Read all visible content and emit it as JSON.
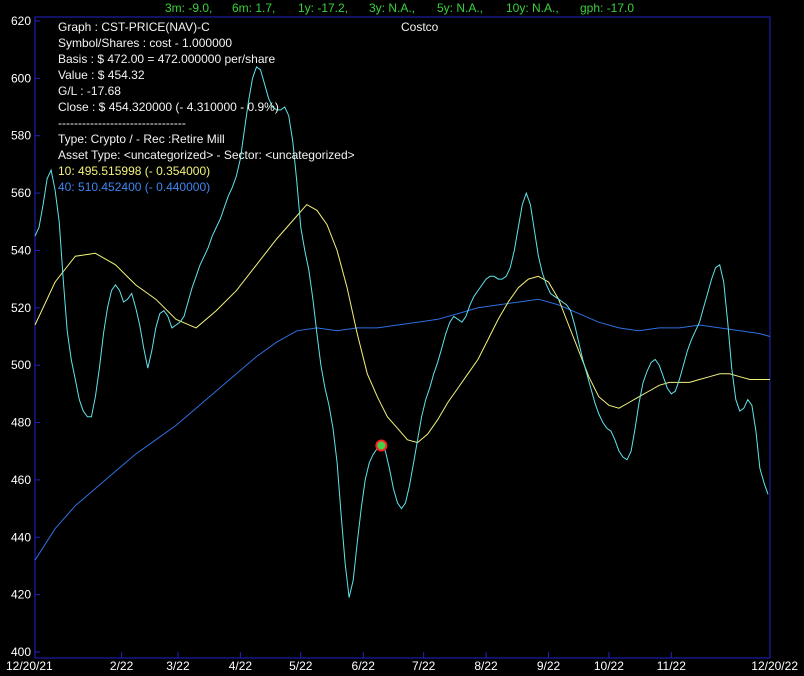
{
  "stats": {
    "m3": "3m: -9.0,",
    "m6": "6m: 1.7,",
    "y1": "1y: -17.2,",
    "y3": "3y: N.A.,",
    "y5": "5y: N.A.,",
    "y10": "10y: N.A.,",
    "gph": "gph: -17.0"
  },
  "info": {
    "graph": "Graph   : CST-PRICE(NAV)-C",
    "company": "Costco",
    "symbol": "Symbol/Shares : cost - 1.000000",
    "basis": "Basis   : $ 472.00 = 472.000000 per/share",
    "value": "Value   : $ 454.32",
    "gl": "G/L     : -17.68",
    "close": "Close   : $ 454.320000 (- 4.310000 - 0.9%)",
    "separator": "--------------------------------",
    "type": "Type: Crypto / - Rec :Retire Mill",
    "asset": "Asset Type:  <uncategorized> - Sector: <uncategorized>",
    "ma10": "10: 495.515998 (- 0.354000)",
    "ma40": "40: 510.452400 (- 0.440000)"
  },
  "colors": {
    "background": "#000000",
    "frame": "#2222cc",
    "price": "#5fe3ea",
    "ma10": "#f3f37a",
    "ma40": "#2f6fe0",
    "stats_text": "#39d23a",
    "marker_ring": "#ff2020",
    "marker_fill": "#3fd24a"
  },
  "chart_data": {
    "type": "line",
    "ylim": [
      400,
      620
    ],
    "yticks": [
      400,
      420,
      440,
      460,
      480,
      500,
      520,
      540,
      560,
      580,
      600,
      620
    ],
    "xlim": [
      0,
      365
    ],
    "xticks": [
      {
        "t": 0,
        "label": "12/20/21"
      },
      {
        "t": 43,
        "label": "2/22"
      },
      {
        "t": 71,
        "label": "3/22"
      },
      {
        "t": 102,
        "label": "4/22"
      },
      {
        "t": 132,
        "label": "5/22"
      },
      {
        "t": 163,
        "label": "6/22"
      },
      {
        "t": 193,
        "label": "7/22"
      },
      {
        "t": 224,
        "label": "8/22"
      },
      {
        "t": 255,
        "label": "9/22"
      },
      {
        "t": 285,
        "label": "10/22"
      },
      {
        "t": 316,
        "label": "11/22"
      },
      {
        "t": 365,
        "label": "12/20/22"
      }
    ],
    "basis_marker": {
      "t": 172,
      "value": 472
    },
    "series": [
      {
        "key": "price",
        "points": [
          [
            0,
            545
          ],
          [
            2,
            548
          ],
          [
            4,
            556
          ],
          [
            6,
            565
          ],
          [
            8,
            568
          ],
          [
            10,
            561
          ],
          [
            12,
            550
          ],
          [
            14,
            530
          ],
          [
            16,
            512
          ],
          [
            18,
            502
          ],
          [
            20,
            495
          ],
          [
            22,
            488
          ],
          [
            24,
            484
          ],
          [
            26,
            482
          ],
          [
            28,
            482
          ],
          [
            30,
            489
          ],
          [
            32,
            499
          ],
          [
            34,
            511
          ],
          [
            36,
            520
          ],
          [
            38,
            526
          ],
          [
            40,
            528
          ],
          [
            42,
            526
          ],
          [
            44,
            522
          ],
          [
            46,
            523
          ],
          [
            48,
            525
          ],
          [
            50,
            520
          ],
          [
            52,
            514
          ],
          [
            54,
            506
          ],
          [
            56,
            499
          ],
          [
            58,
            505
          ],
          [
            60,
            513
          ],
          [
            62,
            518
          ],
          [
            64,
            519
          ],
          [
            66,
            517
          ],
          [
            68,
            513
          ],
          [
            70,
            514
          ],
          [
            72,
            515
          ],
          [
            74,
            517
          ],
          [
            76,
            522
          ],
          [
            78,
            527
          ],
          [
            80,
            531
          ],
          [
            82,
            535
          ],
          [
            84,
            538
          ],
          [
            86,
            541
          ],
          [
            88,
            545
          ],
          [
            90,
            548
          ],
          [
            92,
            551
          ],
          [
            94,
            555
          ],
          [
            96,
            559
          ],
          [
            98,
            562
          ],
          [
            100,
            566
          ],
          [
            102,
            572
          ],
          [
            104,
            582
          ],
          [
            106,
            592
          ],
          [
            108,
            600
          ],
          [
            110,
            604
          ],
          [
            112,
            603
          ],
          [
            114,
            598
          ],
          [
            116,
            593
          ],
          [
            118,
            590
          ],
          [
            120,
            589
          ],
          [
            122,
            589
          ],
          [
            124,
            590
          ],
          [
            126,
            587
          ],
          [
            128,
            578
          ],
          [
            130,
            564
          ],
          [
            132,
            548
          ],
          [
            134,
            540
          ],
          [
            136,
            533
          ],
          [
            138,
            523
          ],
          [
            140,
            511
          ],
          [
            142,
            500
          ],
          [
            144,
            492
          ],
          [
            146,
            486
          ],
          [
            148,
            478
          ],
          [
            150,
            466
          ],
          [
            152,
            448
          ],
          [
            154,
            431
          ],
          [
            156,
            419
          ],
          [
            158,
            425
          ],
          [
            160,
            438
          ],
          [
            162,
            450
          ],
          [
            164,
            460
          ],
          [
            166,
            466
          ],
          [
            168,
            469
          ],
          [
            170,
            471
          ],
          [
            172,
            472
          ],
          [
            174,
            470
          ],
          [
            176,
            464
          ],
          [
            178,
            457
          ],
          [
            180,
            452
          ],
          [
            182,
            450
          ],
          [
            184,
            452
          ],
          [
            186,
            458
          ],
          [
            188,
            466
          ],
          [
            190,
            474
          ],
          [
            192,
            482
          ],
          [
            194,
            488
          ],
          [
            196,
            492
          ],
          [
            198,
            497
          ],
          [
            200,
            501
          ],
          [
            202,
            506
          ],
          [
            204,
            511
          ],
          [
            206,
            515
          ],
          [
            208,
            517
          ],
          [
            210,
            516
          ],
          [
            212,
            515
          ],
          [
            214,
            517
          ],
          [
            216,
            521
          ],
          [
            218,
            524
          ],
          [
            220,
            526
          ],
          [
            222,
            528
          ],
          [
            224,
            530
          ],
          [
            226,
            531
          ],
          [
            228,
            531
          ],
          [
            230,
            530
          ],
          [
            232,
            530
          ],
          [
            234,
            531
          ],
          [
            236,
            534
          ],
          [
            238,
            540
          ],
          [
            240,
            548
          ],
          [
            242,
            556
          ],
          [
            244,
            560
          ],
          [
            246,
            556
          ],
          [
            248,
            547
          ],
          [
            250,
            538
          ],
          [
            252,
            532
          ],
          [
            254,
            528
          ],
          [
            256,
            525
          ],
          [
            258,
            524
          ],
          [
            260,
            523
          ],
          [
            262,
            522
          ],
          [
            264,
            521
          ],
          [
            266,
            519
          ],
          [
            268,
            514
          ],
          [
            270,
            508
          ],
          [
            272,
            502
          ],
          [
            274,
            497
          ],
          [
            276,
            492
          ],
          [
            278,
            487
          ],
          [
            280,
            483
          ],
          [
            282,
            480
          ],
          [
            284,
            478
          ],
          [
            286,
            477
          ],
          [
            288,
            474
          ],
          [
            290,
            470
          ],
          [
            292,
            468
          ],
          [
            294,
            467
          ],
          [
            296,
            470
          ],
          [
            298,
            478
          ],
          [
            300,
            487
          ],
          [
            302,
            494
          ],
          [
            304,
            498
          ],
          [
            306,
            501
          ],
          [
            308,
            502
          ],
          [
            310,
            500
          ],
          [
            312,
            496
          ],
          [
            314,
            492
          ],
          [
            316,
            490
          ],
          [
            318,
            491
          ],
          [
            320,
            495
          ],
          [
            322,
            500
          ],
          [
            324,
            505
          ],
          [
            326,
            509
          ],
          [
            328,
            512
          ],
          [
            330,
            515
          ],
          [
            332,
            520
          ],
          [
            334,
            525
          ],
          [
            336,
            530
          ],
          [
            338,
            534
          ],
          [
            340,
            535
          ],
          [
            342,
            529
          ],
          [
            344,
            515
          ],
          [
            346,
            499
          ],
          [
            348,
            488
          ],
          [
            350,
            484
          ],
          [
            352,
            485
          ],
          [
            354,
            488
          ],
          [
            356,
            486
          ],
          [
            358,
            477
          ],
          [
            360,
            464
          ],
          [
            362,
            459
          ],
          [
            364,
            455
          ]
        ]
      },
      {
        "key": "ma10",
        "points": [
          [
            0,
            514
          ],
          [
            10,
            529
          ],
          [
            20,
            538
          ],
          [
            30,
            539
          ],
          [
            40,
            535
          ],
          [
            50,
            528
          ],
          [
            60,
            523
          ],
          [
            70,
            516
          ],
          [
            80,
            513
          ],
          [
            90,
            519
          ],
          [
            100,
            526
          ],
          [
            110,
            535
          ],
          [
            120,
            544
          ],
          [
            130,
            552
          ],
          [
            135,
            556
          ],
          [
            140,
            554
          ],
          [
            145,
            549
          ],
          [
            150,
            540
          ],
          [
            155,
            527
          ],
          [
            160,
            511
          ],
          [
            165,
            497
          ],
          [
            170,
            489
          ],
          [
            175,
            482
          ],
          [
            180,
            478
          ],
          [
            185,
            474
          ],
          [
            190,
            473
          ],
          [
            195,
            476
          ],
          [
            200,
            481
          ],
          [
            205,
            487
          ],
          [
            210,
            492
          ],
          [
            215,
            497
          ],
          [
            220,
            502
          ],
          [
            225,
            509
          ],
          [
            230,
            516
          ],
          [
            235,
            522
          ],
          [
            240,
            527
          ],
          [
            245,
            530
          ],
          [
            250,
            531
          ],
          [
            255,
            529
          ],
          [
            260,
            523
          ],
          [
            265,
            514
          ],
          [
            270,
            505
          ],
          [
            275,
            496
          ],
          [
            280,
            489
          ],
          [
            285,
            486
          ],
          [
            290,
            485
          ],
          [
            295,
            487
          ],
          [
            300,
            489
          ],
          [
            305,
            491
          ],
          [
            310,
            493
          ],
          [
            315,
            494
          ],
          [
            320,
            494
          ],
          [
            325,
            494
          ],
          [
            330,
            495
          ],
          [
            335,
            496
          ],
          [
            340,
            497
          ],
          [
            345,
            497
          ],
          [
            350,
            496
          ],
          [
            355,
            495
          ],
          [
            360,
            495
          ],
          [
            365,
            495
          ]
        ]
      },
      {
        "key": "ma40",
        "points": [
          [
            0,
            432
          ],
          [
            10,
            443
          ],
          [
            20,
            451
          ],
          [
            30,
            457
          ],
          [
            40,
            463
          ],
          [
            50,
            469
          ],
          [
            60,
            474
          ],
          [
            70,
            479
          ],
          [
            80,
            485
          ],
          [
            90,
            491
          ],
          [
            100,
            497
          ],
          [
            110,
            503
          ],
          [
            120,
            508
          ],
          [
            130,
            512
          ],
          [
            140,
            513
          ],
          [
            150,
            512
          ],
          [
            160,
            513
          ],
          [
            170,
            513
          ],
          [
            180,
            514
          ],
          [
            190,
            515
          ],
          [
            200,
            516
          ],
          [
            210,
            518
          ],
          [
            220,
            520
          ],
          [
            230,
            521
          ],
          [
            240,
            522
          ],
          [
            250,
            523
          ],
          [
            260,
            521
          ],
          [
            270,
            518
          ],
          [
            280,
            515
          ],
          [
            290,
            513
          ],
          [
            300,
            512
          ],
          [
            310,
            513
          ],
          [
            320,
            513
          ],
          [
            330,
            514
          ],
          [
            340,
            513
          ],
          [
            350,
            512
          ],
          [
            360,
            511
          ],
          [
            365,
            510
          ]
        ]
      }
    ]
  }
}
